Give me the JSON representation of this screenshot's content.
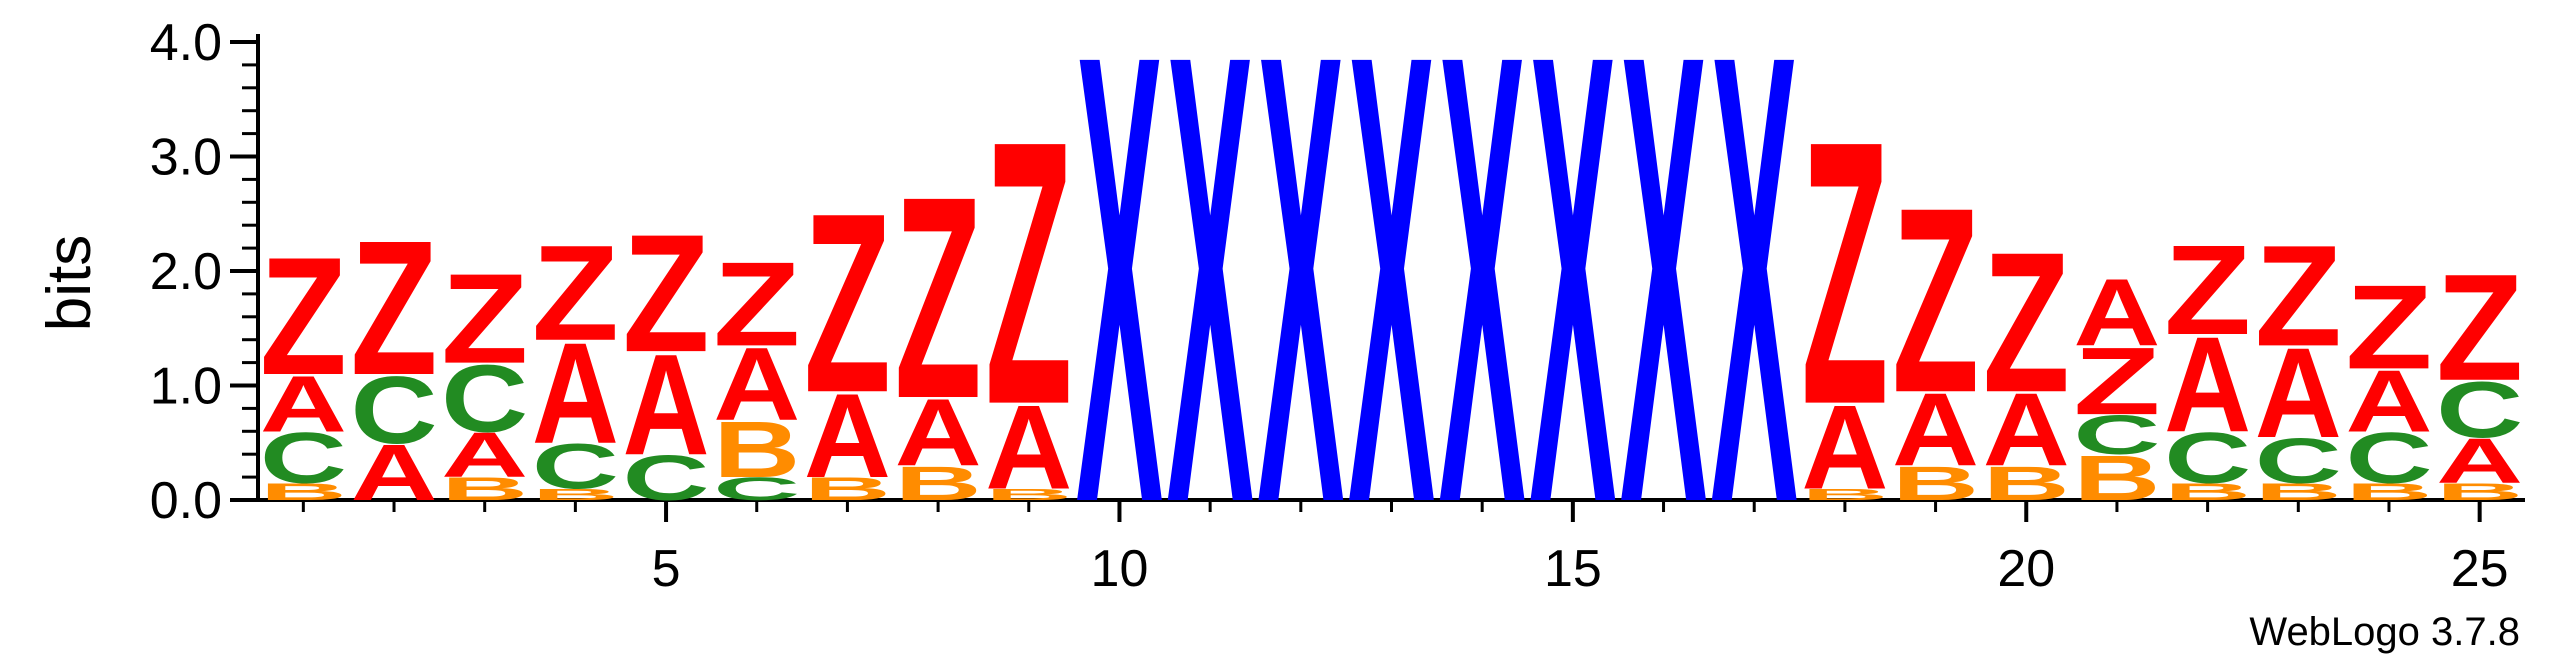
{
  "chart_data": {
    "type": "sequence-logo",
    "ylabel": "bits",
    "ylim": [
      0,
      4.0
    ],
    "yticks": [
      "0.0",
      "1.0",
      "2.0",
      "3.0",
      "4.0"
    ],
    "xlim": [
      0.5,
      25.5
    ],
    "xticks": [
      "5",
      "10",
      "15",
      "20",
      "25"
    ],
    "credit": "WebLogo 3.7.8",
    "colors": {
      "Z": "#ff0000",
      "A": "#ff0000",
      "C": "#228b22",
      "B": "#ff8c00",
      "X": "#0000ff"
    },
    "positions": [
      {
        "pos": 1,
        "stack": [
          {
            "letter": "B",
            "bits": 0.15
          },
          {
            "letter": "C",
            "bits": 0.45
          },
          {
            "letter": "A",
            "bits": 0.5
          },
          {
            "letter": "Z",
            "bits": 1.05
          }
        ]
      },
      {
        "pos": 2,
        "stack": [
          {
            "letter": "A",
            "bits": 0.5
          },
          {
            "letter": "C",
            "bits": 0.6
          },
          {
            "letter": "Z",
            "bits": 1.2
          }
        ]
      },
      {
        "pos": 3,
        "stack": [
          {
            "letter": "B",
            "bits": 0.2
          },
          {
            "letter": "A",
            "bits": 0.4
          },
          {
            "letter": "C",
            "bits": 0.6
          },
          {
            "letter": "Z",
            "bits": 0.8
          }
        ]
      },
      {
        "pos": 4,
        "stack": [
          {
            "letter": "B",
            "bits": 0.1
          },
          {
            "letter": "C",
            "bits": 0.4
          },
          {
            "letter": "A",
            "bits": 0.9
          },
          {
            "letter": "Z",
            "bits": 0.85
          }
        ]
      },
      {
        "pos": 5,
        "stack": [
          {
            "letter": "C",
            "bits": 0.4
          },
          {
            "letter": "A",
            "bits": 0.9
          },
          {
            "letter": "Z",
            "bits": 1.05
          }
        ]
      },
      {
        "pos": 6,
        "stack": [
          {
            "letter": "C",
            "bits": 0.2
          },
          {
            "letter": "B",
            "bits": 0.5
          },
          {
            "letter": "A",
            "bits": 0.65
          },
          {
            "letter": "Z",
            "bits": 0.75
          }
        ]
      },
      {
        "pos": 7,
        "stack": [
          {
            "letter": "B",
            "bits": 0.2
          },
          {
            "letter": "A",
            "bits": 0.75
          },
          {
            "letter": "Z",
            "bits": 1.6
          }
        ]
      },
      {
        "pos": 8,
        "stack": [
          {
            "letter": "B",
            "bits": 0.3
          },
          {
            "letter": "A",
            "bits": 0.6
          },
          {
            "letter": "Z",
            "bits": 1.8
          }
        ]
      },
      {
        "pos": 9,
        "stack": [
          {
            "letter": "B",
            "bits": 0.1
          },
          {
            "letter": "A",
            "bits": 0.75
          },
          {
            "letter": "Z",
            "bits": 2.35
          }
        ]
      },
      {
        "pos": 10,
        "stack": [
          {
            "letter": "X",
            "bits": 4.0
          }
        ]
      },
      {
        "pos": 11,
        "stack": [
          {
            "letter": "X",
            "bits": 4.0
          }
        ]
      },
      {
        "pos": 12,
        "stack": [
          {
            "letter": "X",
            "bits": 4.0
          }
        ]
      },
      {
        "pos": 13,
        "stack": [
          {
            "letter": "X",
            "bits": 4.0
          }
        ]
      },
      {
        "pos": 14,
        "stack": [
          {
            "letter": "X",
            "bits": 4.0
          }
        ]
      },
      {
        "pos": 15,
        "stack": [
          {
            "letter": "X",
            "bits": 4.0
          }
        ]
      },
      {
        "pos": 16,
        "stack": [
          {
            "letter": "X",
            "bits": 4.0
          }
        ]
      },
      {
        "pos": 17,
        "stack": [
          {
            "letter": "X",
            "bits": 4.0
          }
        ]
      },
      {
        "pos": 18,
        "stack": [
          {
            "letter": "B",
            "bits": 0.1
          },
          {
            "letter": "A",
            "bits": 0.75
          },
          {
            "letter": "Z",
            "bits": 2.35
          }
        ]
      },
      {
        "pos": 19,
        "stack": [
          {
            "letter": "B",
            "bits": 0.3
          },
          {
            "letter": "A",
            "bits": 0.65
          },
          {
            "letter": "Z",
            "bits": 1.65
          }
        ]
      },
      {
        "pos": 20,
        "stack": [
          {
            "letter": "B",
            "bits": 0.3
          },
          {
            "letter": "A",
            "bits": 0.65
          },
          {
            "letter": "Z",
            "bits": 1.25
          }
        ]
      },
      {
        "pos": 21,
        "stack": [
          {
            "letter": "B",
            "bits": 0.4
          },
          {
            "letter": "C",
            "bits": 0.35
          },
          {
            "letter": "Z",
            "bits": 0.6
          },
          {
            "letter": "A",
            "bits": 0.6
          }
        ]
      },
      {
        "pos": 22,
        "stack": [
          {
            "letter": "B",
            "bits": 0.15
          },
          {
            "letter": "C",
            "bits": 0.45
          },
          {
            "letter": "A",
            "bits": 0.85
          },
          {
            "letter": "Z",
            "bits": 0.8
          }
        ]
      },
      {
        "pos": 23,
        "stack": [
          {
            "letter": "B",
            "bits": 0.15
          },
          {
            "letter": "C",
            "bits": 0.4
          },
          {
            "letter": "A",
            "bits": 0.8
          },
          {
            "letter": "Z",
            "bits": 0.9
          }
        ]
      },
      {
        "pos": 24,
        "stack": [
          {
            "letter": "B",
            "bits": 0.15
          },
          {
            "letter": "C",
            "bits": 0.45
          },
          {
            "letter": "A",
            "bits": 0.55
          },
          {
            "letter": "Z",
            "bits": 0.75
          }
        ]
      },
      {
        "pos": 25,
        "stack": [
          {
            "letter": "B",
            "bits": 0.15
          },
          {
            "letter": "A",
            "bits": 0.4
          },
          {
            "letter": "C",
            "bits": 0.5
          },
          {
            "letter": "Z",
            "bits": 0.95
          }
        ]
      }
    ]
  }
}
